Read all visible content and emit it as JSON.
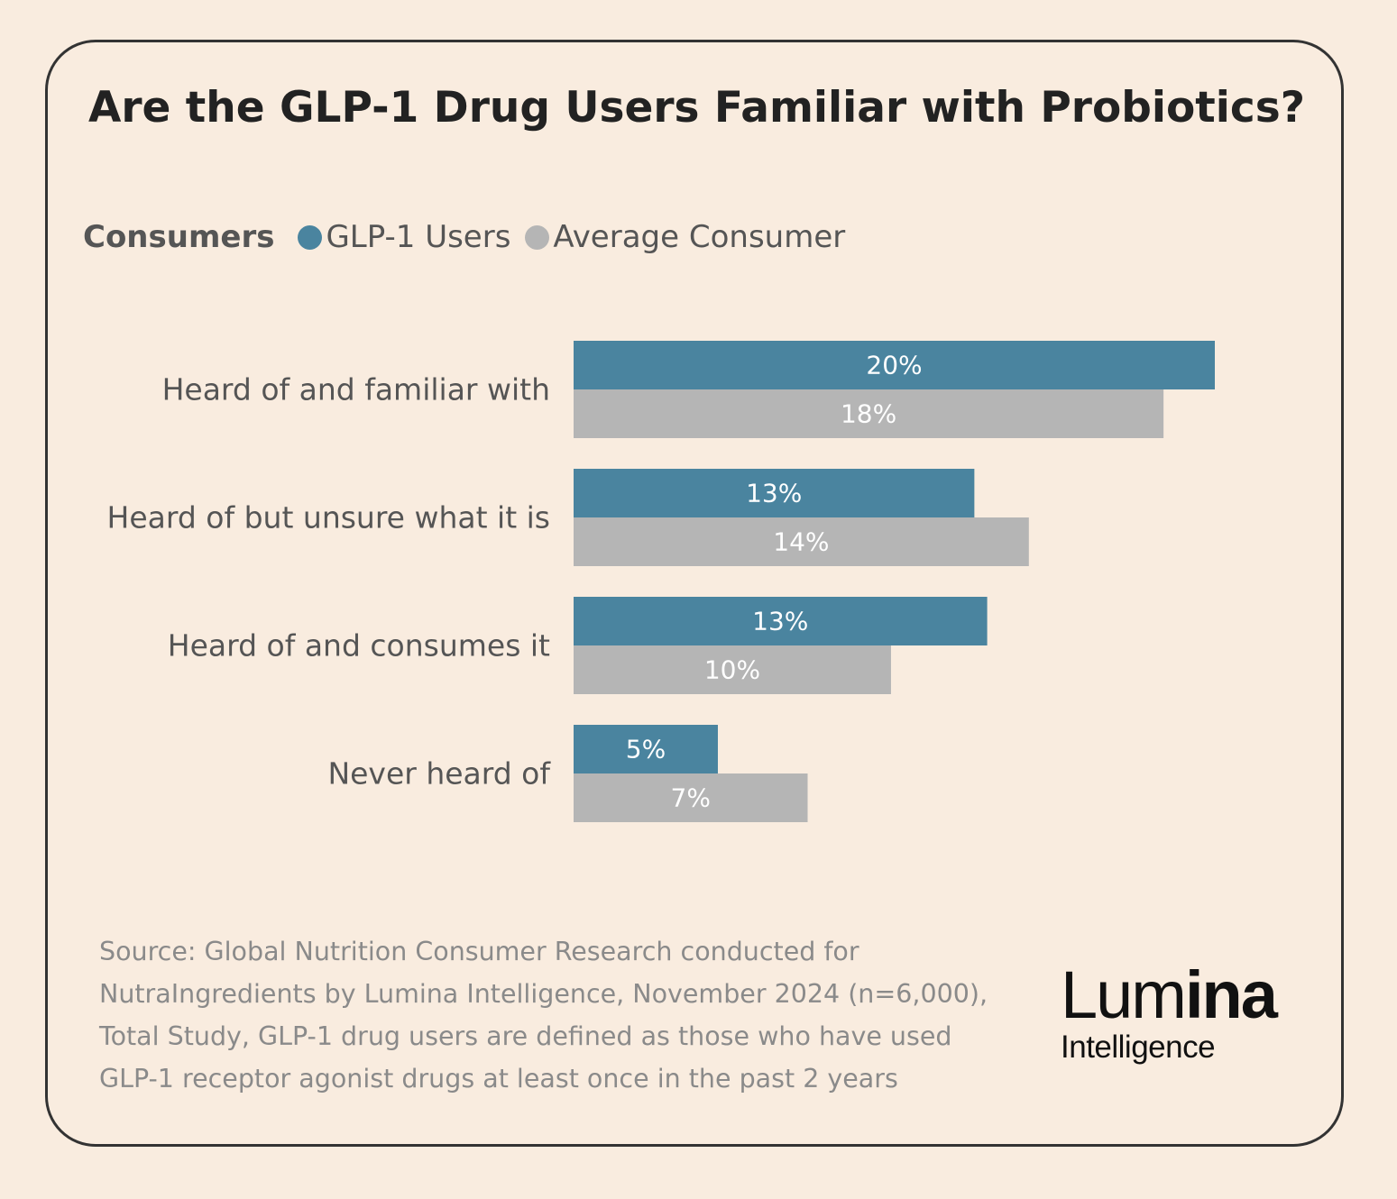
{
  "chart_data": {
    "type": "bar",
    "orientation": "horizontal",
    "title": "Are the GLP-1 Drug Users Familiar with Probiotics?",
    "legend_title": "Consumers",
    "categories": [
      "Heard of and familiar with",
      "Heard of but unsure what it is",
      "Heard of and consumes it",
      "Never heard of"
    ],
    "series": [
      {
        "name": "GLP-1 Users",
        "color": "#4a849f",
        "values": [
          20,
          12.5,
          12.9,
          4.5
        ],
        "labels": [
          "20%",
          "13%",
          "13%",
          "5%"
        ]
      },
      {
        "name": "Average Consumer",
        "color": "#b5b5b5",
        "values": [
          18.4,
          14.2,
          9.9,
          7.3
        ],
        "labels": [
          "18%",
          "14%",
          "10%",
          "7%"
        ]
      }
    ],
    "xlim": [
      0,
      20
    ],
    "grid": false
  },
  "footer": {
    "source_lines": [
      "Source: Global Nutrition Consumer Research conducted for",
      "NutraIngredients by Lumina Intelligence, November 2024 (n=6,000),",
      "Total Study, GLP-1 drug users are defined as those who have used",
      "GLP-1 receptor agonist drugs at least once in the past 2 years"
    ]
  },
  "logo": {
    "text_light": "Lum",
    "text_bold": "ina",
    "subtitle": "Intelligence"
  }
}
